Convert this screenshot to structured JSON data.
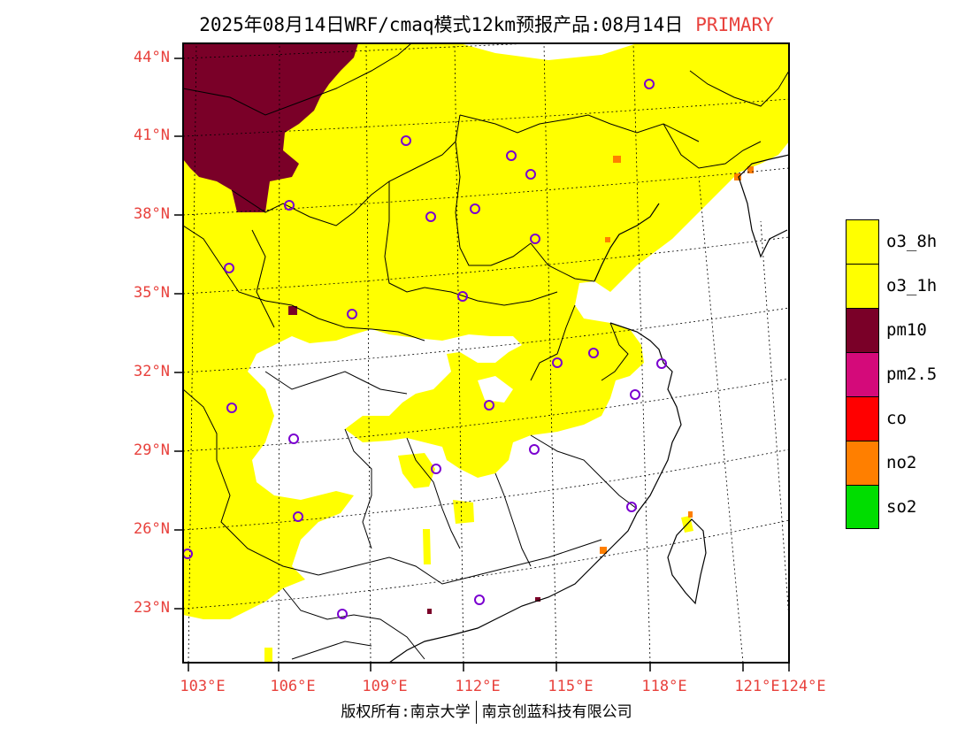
{
  "title": {
    "main": "2025年08月14日WRF/cmaq模式12km预报产品:08月14日",
    "tag": "PRIMARY"
  },
  "axes": {
    "lat_labels": [
      "44°N",
      "41°N",
      "38°N",
      "35°N",
      "32°N",
      "29°N",
      "26°N",
      "23°N"
    ],
    "lon_labels": [
      "103°E",
      "106°E",
      "109°E",
      "112°E",
      "115°E",
      "118°E",
      "121°E",
      "124°E"
    ]
  },
  "legend": {
    "items": [
      {
        "label": "o3_8h",
        "color": "#ffff00"
      },
      {
        "label": "o3_1h",
        "color": "#ffff00"
      },
      {
        "label": "pm10",
        "color": "#7a0028"
      },
      {
        "label": "pm2.5",
        "color": "#d40a7a"
      },
      {
        "label": "co",
        "color": "#ff0000"
      },
      {
        "label": "no2",
        "color": "#ff7f00"
      },
      {
        "label": "so2",
        "color": "#00dd00"
      }
    ]
  },
  "footer": {
    "copyright": "版权所有:南京大学",
    "company": "南京创蓝科技有限公司"
  },
  "colors": {
    "o3": "#ffff00",
    "pm10": "#7a0028",
    "no2": "#ff7f00",
    "station": "#7a00d0",
    "label": "#e8413c"
  }
}
